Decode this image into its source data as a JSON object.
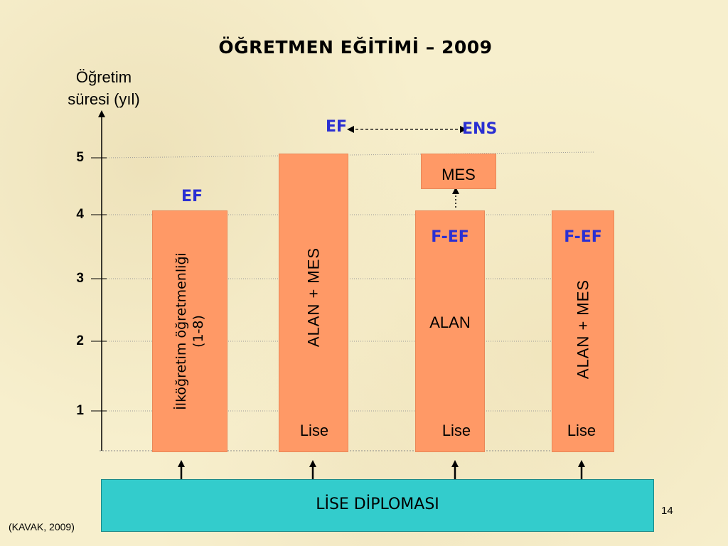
{
  "title": "ÖĞRETMEN EĞİTİMİ – 2009",
  "y_axis": {
    "label_line1": "Öğretim",
    "label_line2": "süresi (yıl)",
    "ticks": [
      "1",
      "2",
      "3",
      "4",
      "5"
    ]
  },
  "bars": [
    {
      "vertical_line1": "İlköğretim öğretmenliği",
      "vertical_line2": "(1-8)",
      "top_label": "EF"
    },
    {
      "vertical": "ALAN + MES",
      "bottom_label": "Lise"
    },
    {
      "top_box": "MES",
      "top_label": "F-EF",
      "center_label": "ALAN",
      "bottom_label": "Lise"
    },
    {
      "vertical": "ALAN + MES",
      "top_label": "F-EF",
      "bottom_label": "Lise"
    }
  ],
  "arrow_labels": {
    "left": "EF",
    "right": "ENS"
  },
  "diploma": "LİSE DİPLOMASI",
  "source": "(KAVAK, 2009)",
  "page_number": "14",
  "colors": {
    "bar": "#ff9966",
    "diploma": "#33cccc",
    "accent_text": "#2a2fd2"
  }
}
